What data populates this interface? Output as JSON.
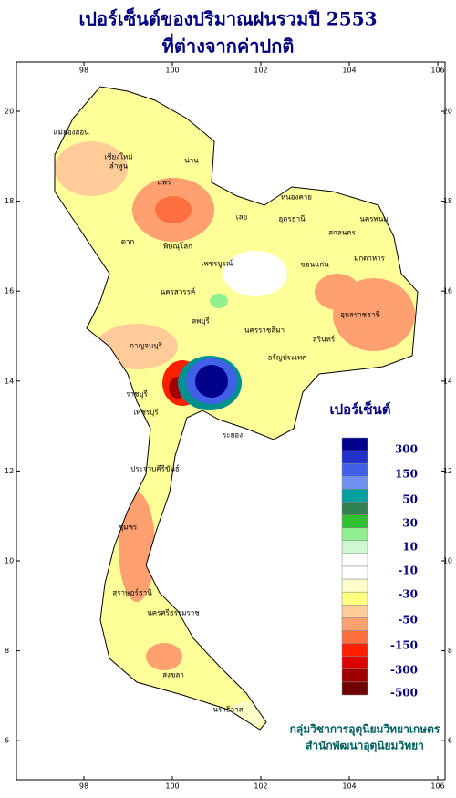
{
  "title": {
    "line1": "เปอร์เซ็นต์ของปริมาณฝนรวมปี 2553",
    "line2": "ที่ต่างจากค่าปกติ"
  },
  "map": {
    "lon_ticks": [
      98,
      100,
      102,
      104,
      106
    ],
    "lat_ticks": [
      20,
      18,
      16,
      14,
      12,
      10,
      8,
      6
    ],
    "provinces": [
      "แม่ฮ่องสอน",
      "เชียงใหม่",
      "ลำพูน",
      "น่าน",
      "แพร่",
      "ตาก",
      "พิษณุโลก",
      "เลย",
      "หนองคาย",
      "อุดรธานี",
      "สกลนคร",
      "นครพนม",
      "มุกดาหาร",
      "ขอนแก่น",
      "เพชรบูรณ์",
      "นครสวรรค์",
      "ลพบุรี",
      "นครราชสีมา",
      "อุบลราชธานี",
      "สุรินทร์",
      "กาญจนบุรี",
      "ราชบุรี",
      "เพชรบุรี",
      "อรัญประเทศ",
      "ระยอง",
      "ประจวบคีรีขันธ์",
      "ชุมพร",
      "สุราษฎร์ธานี",
      "นครศรีธรรมราช",
      "สงขลา",
      "นราธิวาส"
    ]
  },
  "legend": {
    "title": "เปอร์เซ็นต์",
    "labels": [
      300,
      150,
      50,
      30,
      10,
      -10,
      -30,
      -50,
      -150,
      -300,
      -500
    ],
    "colors": [
      "#00008b",
      "#2030c8",
      "#4060e8",
      "#7090f0",
      "#00a0a0",
      "#308050",
      "#30c030",
      "#90f090",
      "#d0f8d0",
      "#ffffff",
      "#ffffff",
      "#ffffcc",
      "#ffff80",
      "#ffcc99",
      "#ffa070",
      "#ff7040",
      "#ff2000",
      "#dd0000",
      "#a00000",
      "#700000"
    ]
  },
  "footer": {
    "line1": "กลุ่มวิชาการอุตุนิยมวิทยาเกษตร",
    "line2": "สำนักพัฒนาอุตุนิยมวิทยา"
  }
}
